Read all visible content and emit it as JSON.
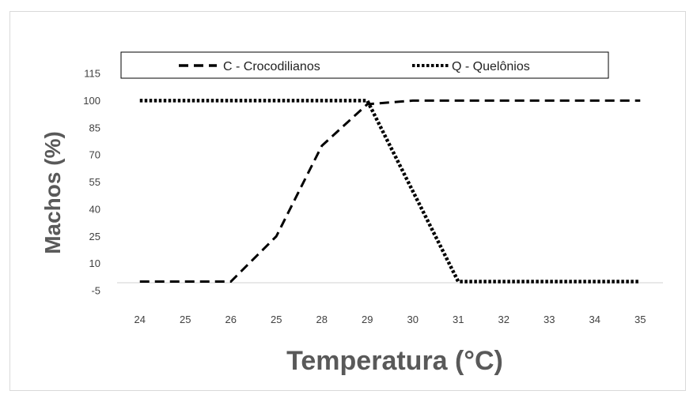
{
  "chart_data": {
    "type": "line",
    "title": "",
    "xlabel": "Temperatura (°C)",
    "ylabel": "Machos (%)",
    "categories": [
      "24",
      "25",
      "26",
      "25",
      "28",
      "29",
      "30",
      "31",
      "32",
      "33",
      "34",
      "35"
    ],
    "y_ticks": [
      -5,
      10,
      25,
      40,
      55,
      70,
      85,
      100,
      115
    ],
    "ylim": [
      -5,
      115
    ],
    "series": [
      {
        "name": "C - Crocodilianos",
        "style": "dashed",
        "color": "#000000",
        "values": [
          0,
          0,
          0,
          25,
          75,
          98,
          100,
          100,
          100,
          100,
          100,
          100
        ]
      },
      {
        "name": "Q - Quelônios",
        "style": "dotted",
        "color": "#000000",
        "values": [
          100,
          100,
          100,
          100,
          100,
          100,
          50,
          0,
          0,
          0,
          0,
          0
        ]
      }
    ],
    "legend_position": "top",
    "grid": false
  }
}
